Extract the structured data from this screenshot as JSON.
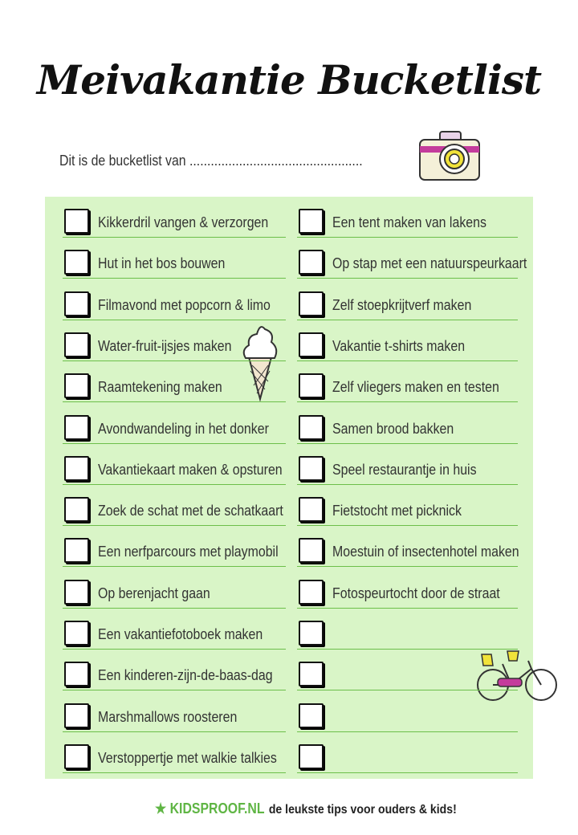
{
  "title": "Meivakantie Bucketlist",
  "owner_line": "Dit is de  bucketlist van .................................................",
  "left_items": [
    "Kikkerdril vangen & verzorgen",
    "Hut in het bos bouwen",
    "Filmavond met popcorn & limo",
    "Water-fruit-ijsjes maken",
    "Raamtekening maken",
    "Avondwandeling in het donker",
    "Vakantiekaart maken & opsturen",
    "Zoek de schat met de schatkaart",
    "Een nerfparcours met playmobil",
    "Op berenjacht gaan",
    "Een vakantiefotoboek maken",
    "Een kinderen-zijn-de-baas-dag",
    "Marshmallows roosteren",
    "Verstoppertje met walkie talkies"
  ],
  "right_items": [
    "Een tent maken van lakens",
    "Op stap met een natuurspeurkaart",
    "Zelf stoepkrijtverf maken",
    "Vakantie t-shirts maken",
    "Zelf vliegers maken en testen",
    "Samen brood bakken",
    "Speel restaurantje in huis",
    "Fietstocht met picknick",
    "Moestuin of insectenhotel maken",
    "Fotospeurtocht door de straat",
    "",
    "",
    "",
    ""
  ],
  "footer": {
    "brand": "KIDSPROOF.NL",
    "tagline": "de leukste tips voor ouders & kids!"
  },
  "colors": {
    "panel": "#d9f5c7",
    "line": "#6cbf4a",
    "brand": "#5fb544"
  }
}
